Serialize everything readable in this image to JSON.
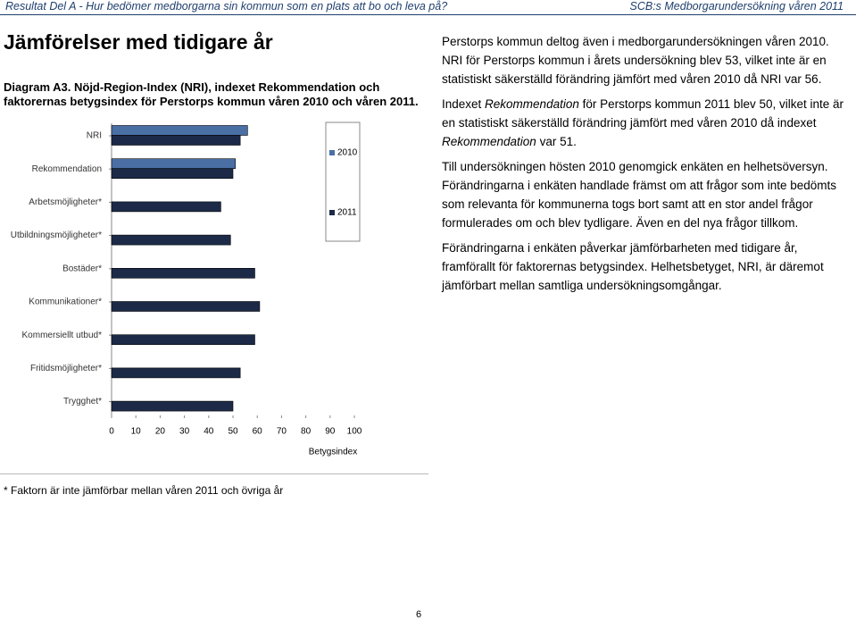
{
  "header": {
    "left": "Resultat Del A - Hur bedömer medborgarna sin kommun som en plats att bo och leva på?",
    "right": "SCB:s Medborgarundersökning våren 2011"
  },
  "heading": "Jämförelser med tidigare år",
  "caption": "Diagram A3. Nöjd-Region-Index (NRI), indexet Rekommendation och faktorernas betygsindex för Perstorps kommun våren 2010 och våren 2011.",
  "chart_data": {
    "type": "barh",
    "categories": [
      "NRI",
      "Rekommendation",
      "Arbetsmöjligheter*",
      "Utbildningsmöjligheter*",
      "Bostäder*",
      "Kommunikationer*",
      "Kommersiellt utbud*",
      "Fritidsmöjligheter*",
      "Trygghet*"
    ],
    "series": [
      {
        "name": "2010",
        "color": "#4a6fa5",
        "values": [
          56,
          51,
          null,
          null,
          null,
          null,
          null,
          null,
          null
        ]
      },
      {
        "name": "2011",
        "color": "#1c2a48",
        "values": [
          53,
          50,
          45,
          49,
          59,
          61,
          59,
          53,
          50
        ]
      }
    ],
    "xlim": [
      0,
      100
    ],
    "xticks": [
      0,
      10,
      20,
      30,
      40,
      50,
      60,
      70,
      80,
      90,
      100
    ],
    "xlabel": "Betygsindex"
  },
  "paragraphs": [
    [
      {
        "text": "Perstorps kommun deltog även i medborgarundersökningen våren 2010. NRI för Perstorps kommun i årets undersökning blev 53, vilket inte är en statistiskt säkerställd förändring jämfört med våren 2010 då NRI var 56."
      }
    ],
    [
      {
        "text": "Indexet "
      },
      {
        "text": "Rekommendation",
        "italic": true
      },
      {
        "text": " för Perstorps kommun 2011 blev 50, vilket inte är en statistiskt säkerställd förändring jämfört med våren 2010 då indexet "
      },
      {
        "text": "Rekommendation",
        "italic": true
      },
      {
        "text": " var 51."
      }
    ],
    [
      {
        "text": "Till undersökningen hösten 2010 genomgick enkäten en helhetsöversyn. Förändringarna i enkäten handlade främst om att frågor som inte bedömts som relevanta för kommunerna togs bort samt att en stor andel frågor formulerades om och blev tydligare. Även en del nya frågor tillkom."
      }
    ],
    [
      {
        "text": "Förändringarna i enkäten påverkar jämförbarheten med tidigare år, framförallt för faktorernas betygsindex. Helhetsbetyget, NRI, är däremot jämförbart mellan samtliga undersökningsomgångar."
      }
    ]
  ],
  "footnote": "* Faktorn är inte jämförbar mellan våren 2011 och övriga år",
  "page_number": "6"
}
